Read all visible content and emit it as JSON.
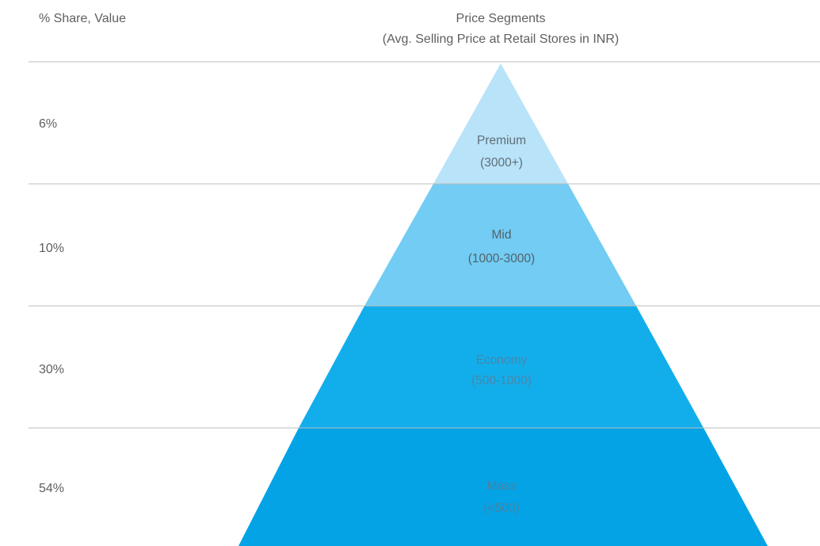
{
  "header": {
    "left_label": "% Share, Value",
    "title_line1": "Price Segments",
    "title_line2": "(Avg. Selling Price at Retail Stores in INR)"
  },
  "segments": [
    {
      "key": "premium",
      "share": "6%",
      "name": "Premium",
      "range": "(3000+)",
      "fill": "#b9e3f8",
      "text_color": "#5f6f78"
    },
    {
      "key": "mid",
      "share": "10%",
      "name": "Mid",
      "range": "(1000-3000)",
      "fill": "#72ccf3",
      "text_color": "#51626c"
    },
    {
      "key": "economy",
      "share": "30%",
      "name": "Economy",
      "range": "(500-1000)",
      "fill": "#12aeec",
      "text_color": "#4b86a6"
    },
    {
      "key": "mass",
      "share": "54%",
      "name": "Mass",
      "range": "(<500)",
      "fill": "#03a3e6",
      "text_color": "#4a82a2"
    }
  ]
}
